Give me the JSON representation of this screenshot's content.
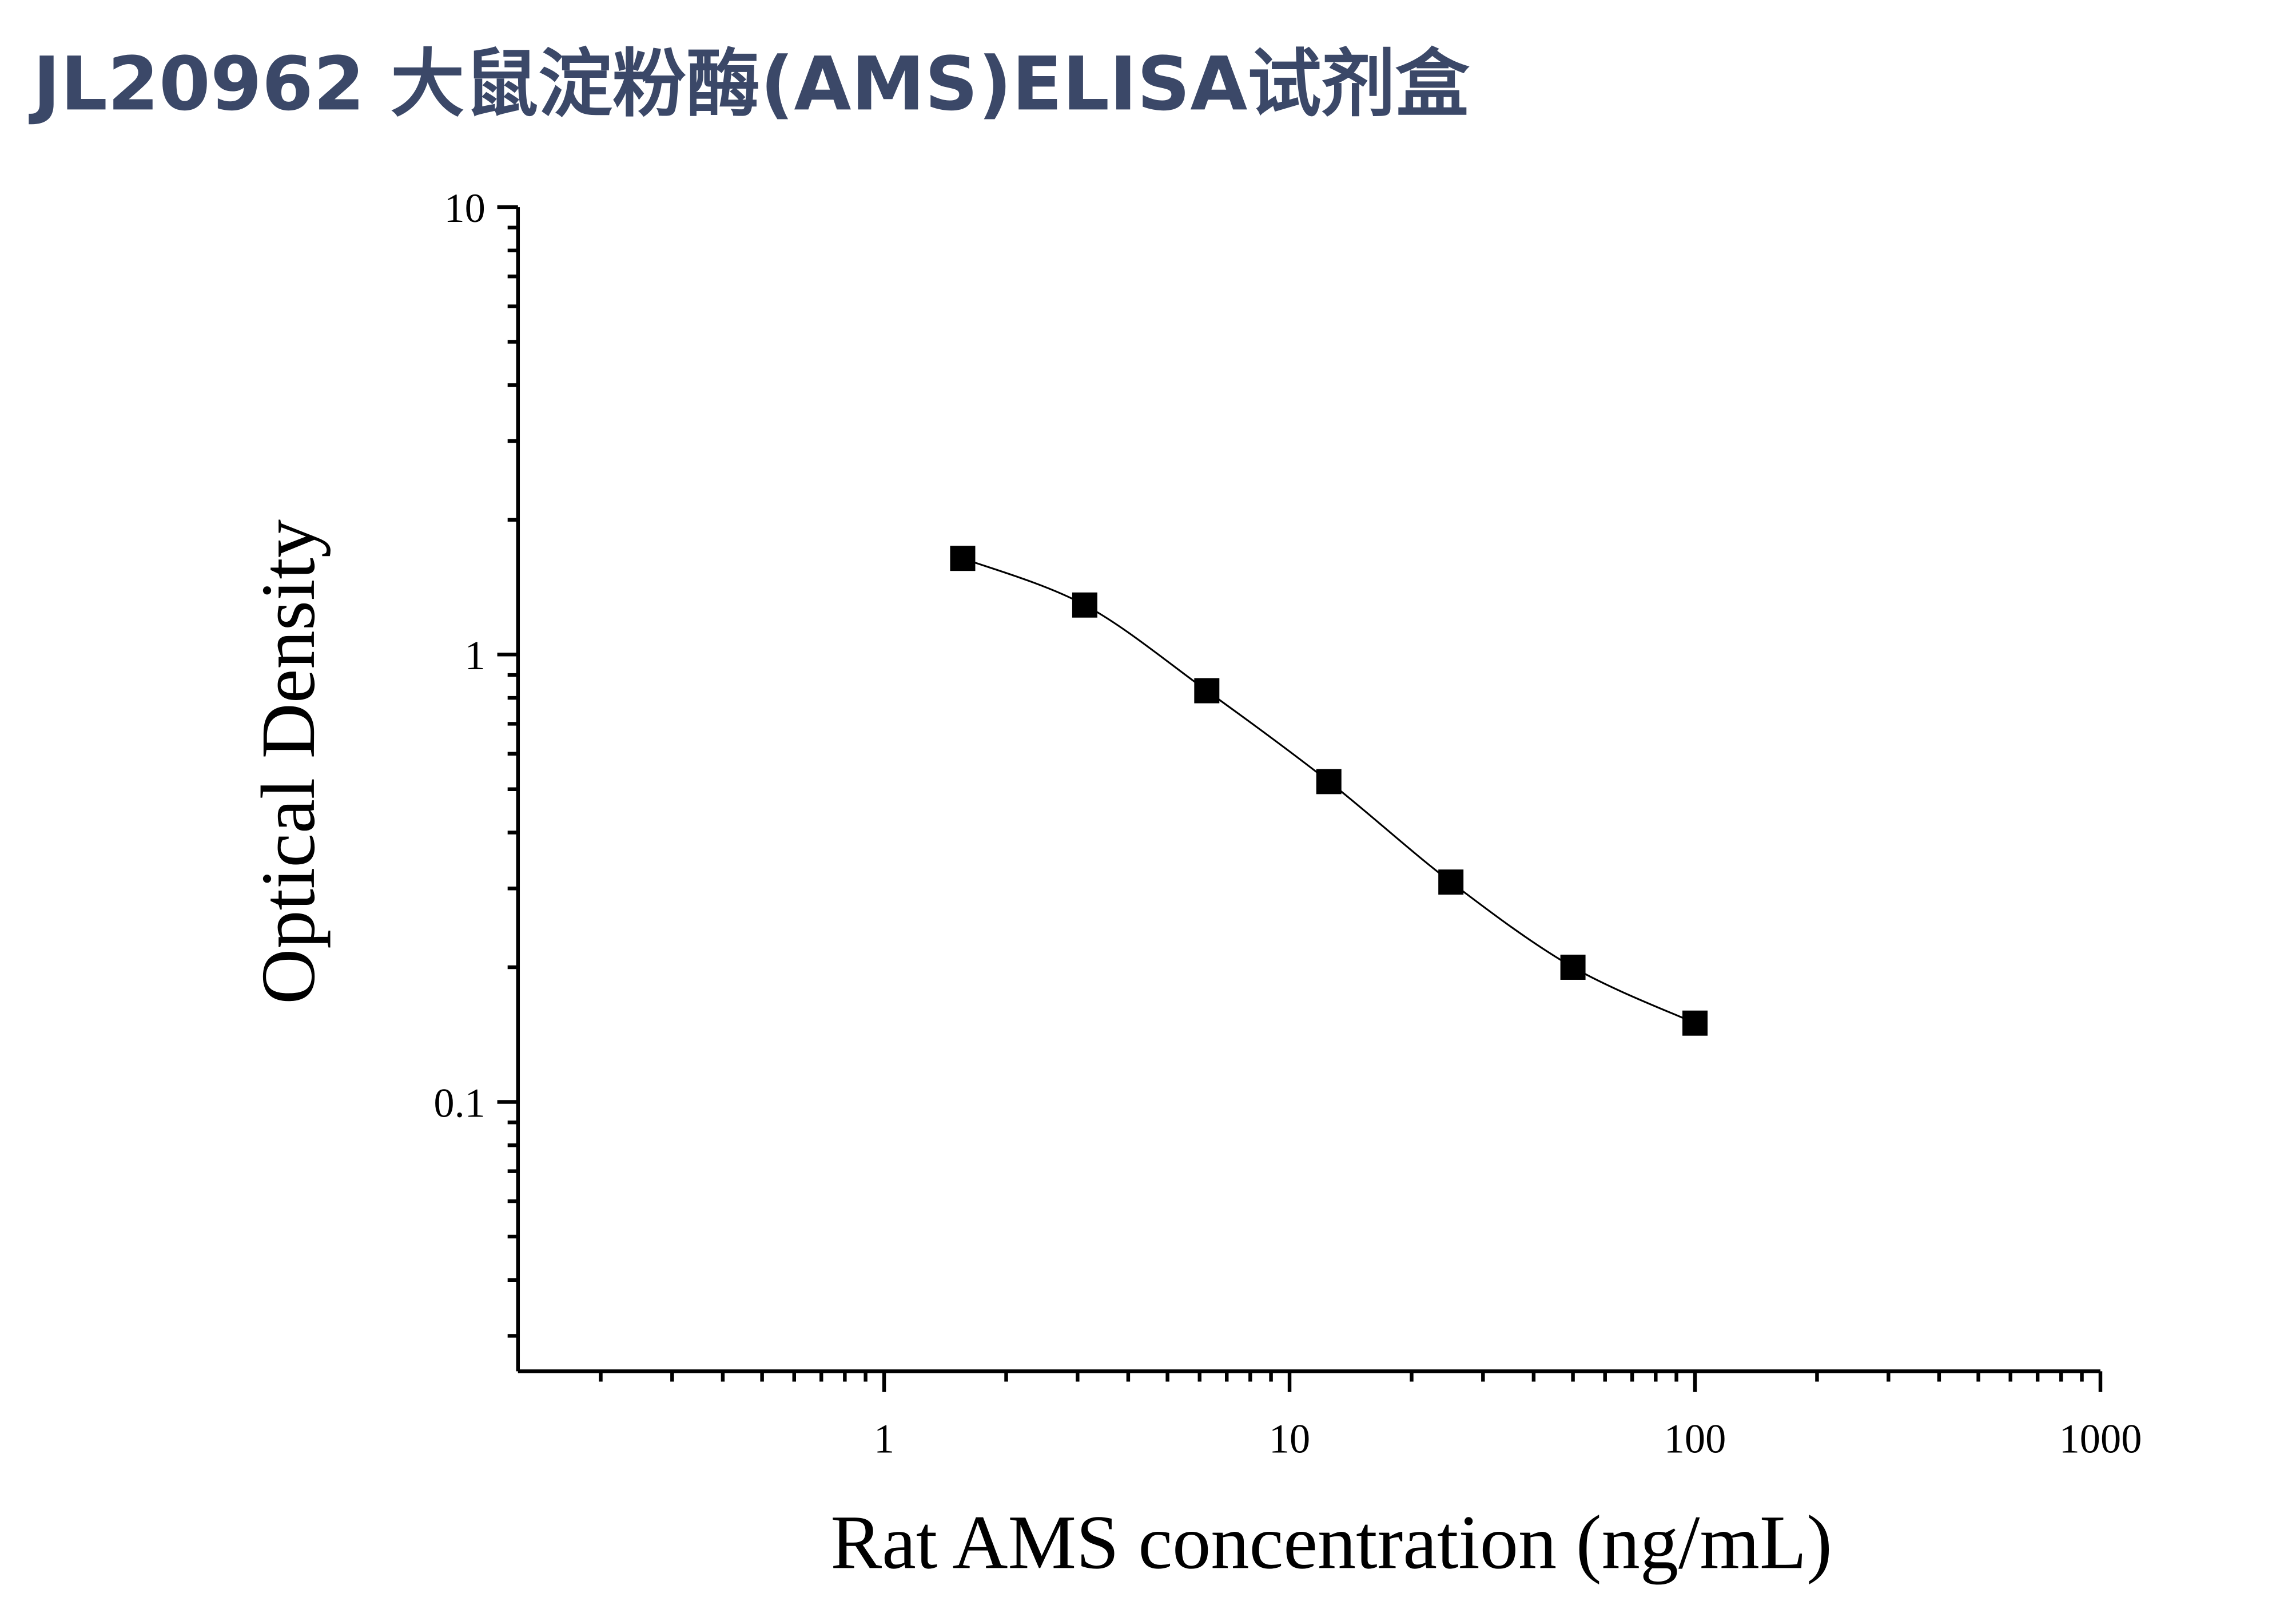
{
  "chart_data": {
    "type": "scatter",
    "title": "JL20962 大鼠淀粉酶(AMS)ELISA试剂盒",
    "x_label": "Rat AMS concentration (ng/mL)",
    "y_label": "Optical Density",
    "x_log": true,
    "y_log": true,
    "color": "#000000",
    "series": [
      {
        "x": [
          1.5625,
          3.125,
          6.25,
          12.5,
          25,
          50,
          100
        ],
        "values": [
          1.64,
          1.29,
          0.83,
          0.52,
          0.31,
          0.2,
          0.15
        ]
      }
    ],
    "xlim": [
      0.125,
      1000
    ],
    "xticks": [
      1,
      10,
      100,
      1000
    ],
    "ylim": [
      0.025,
      10
    ],
    "yticks": [
      0.1,
      1,
      10
    ]
  }
}
